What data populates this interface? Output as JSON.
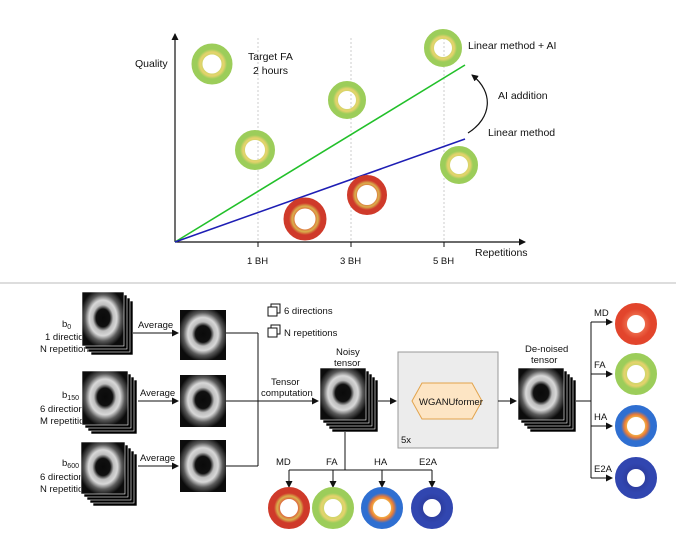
{
  "top": {
    "y_axis_label": "Quality",
    "x_axis_label": "Repetitions",
    "ticks": [
      "1 BH",
      "3 BH",
      "5 BH"
    ],
    "target_line1": "Target FA",
    "target_line2": "2 hours",
    "linear_ai_label": "Linear method + AI",
    "ai_addition_label": "AI addition",
    "linear_label": "Linear method",
    "colors": {
      "linear_ai": "#22c02a",
      "linear": "#1e1eb4"
    }
  },
  "bottom": {
    "inputs": [
      {
        "sub": "0",
        "line2": "1 direction",
        "line3": "N repetitions"
      },
      {
        "sub": "150",
        "line2": "6 directions",
        "line3": "M repetitions"
      },
      {
        "sub": "600",
        "line2": "6 directions",
        "line3": "N repetitions"
      }
    ],
    "average_label": "Average",
    "legend_directions": "6 directions",
    "legend_repetitions": "N repetitions",
    "tensor_computation_line1": "Tensor",
    "tensor_computation_line2": "computation",
    "noisy_tensor_line1": "Noisy",
    "noisy_tensor_line2": "tensor",
    "model_label": "WGANUformer",
    "model_repeat": "5x",
    "denoised_line1": "De-noised",
    "denoised_line2": "tensor",
    "map_labels": [
      "MD",
      "FA",
      "HA",
      "E2A"
    ]
  }
}
